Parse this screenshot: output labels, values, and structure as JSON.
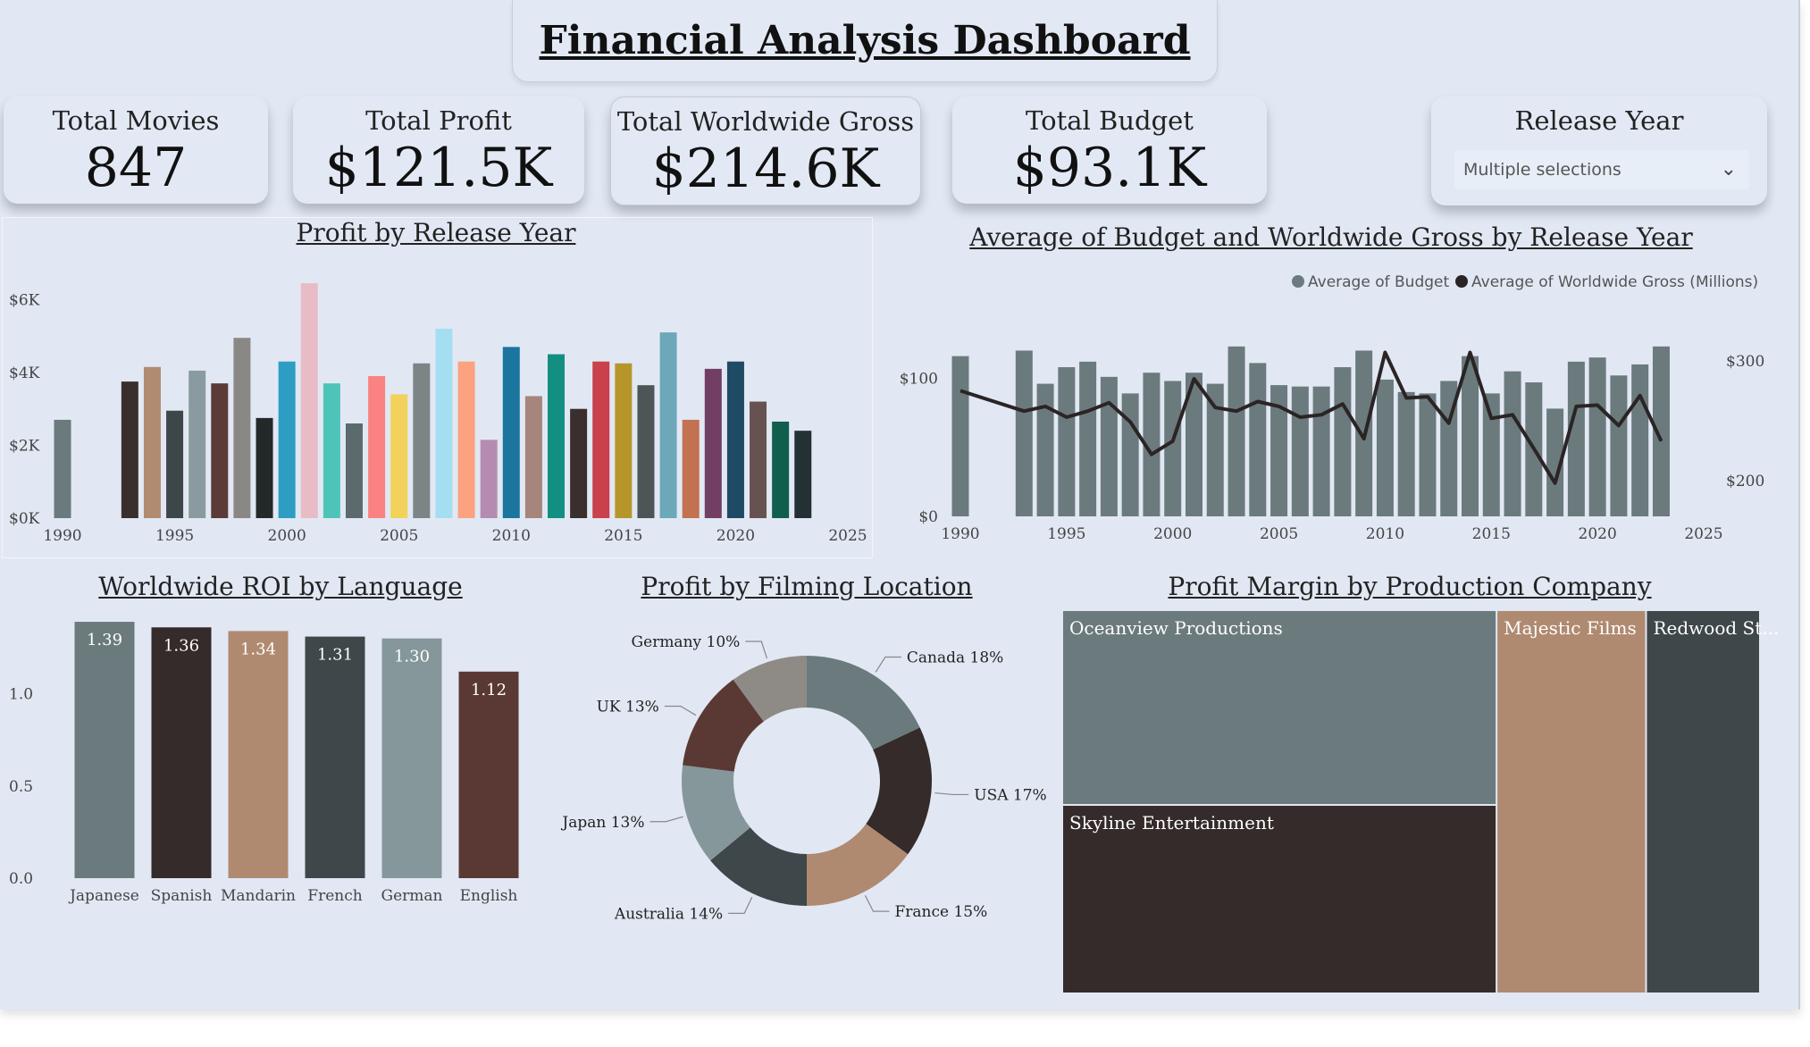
{
  "dashboard": {
    "title": "Financial Analysis Dashboard"
  },
  "kpis": {
    "movies": {
      "label": "Total Movies",
      "value": "847"
    },
    "profit": {
      "label": "Total Profit",
      "value": "$121.5K"
    },
    "gross": {
      "label": "Total Worldwide Gross",
      "value": "$214.6K"
    },
    "budget": {
      "label": "Total Budget",
      "value": "$93.1K"
    }
  },
  "slicer": {
    "label": "Release Year",
    "value": "Multiple selections",
    "icon": "chevron-down-icon"
  },
  "charts": {
    "profit_by_year": {
      "title": "Profit by Release Year"
    },
    "budget_gross": {
      "title": "Average of Budget and Worldwide Gross by Release Year"
    },
    "roi": {
      "title": "Worldwide ROI by Language"
    },
    "location": {
      "title": "Profit by Filming Location"
    },
    "margin": {
      "title": "Profit Margin by Production Company"
    }
  },
  "chart_data": [
    {
      "type": "bar",
      "title": "Profit by Release Year",
      "x": [
        1990,
        1993,
        1994,
        1995,
        1996,
        1997,
        1998,
        1999,
        2000,
        2001,
        2002,
        2003,
        2004,
        2005,
        2006,
        2007,
        2008,
        2009,
        2010,
        2011,
        2012,
        2013,
        2014,
        2015,
        2016,
        2017,
        2018,
        2019,
        2020,
        2021,
        2022,
        2023
      ],
      "values": [
        2700,
        3750,
        4150,
        2950,
        4050,
        3700,
        4950,
        2750,
        4300,
        6450,
        3700,
        2600,
        3900,
        3400,
        4250,
        5200,
        4300,
        2150,
        4700,
        3350,
        4500,
        3000,
        4300,
        4250,
        3650,
        5100,
        2700,
        4100,
        4300,
        3200,
        2650,
        2400
      ],
      "colors": [
        "#6b7a7d",
        "#3a2f2c",
        "#b18b71",
        "#3d4649",
        "#8a9b9f",
        "#5a3b36",
        "#8a8885",
        "#232929",
        "#2e9dc3",
        "#e7bcc5",
        "#4ec4b9",
        "#5b6a6d",
        "#fb8282",
        "#f2d25a",
        "#7d8486",
        "#a5def0",
        "#fca27e",
        "#b48cb1",
        "#1b759e",
        "#a6857c",
        "#138f82",
        "#3a2f2c",
        "#c9414a",
        "#b6962a",
        "#4d5556",
        "#6da7ba",
        "#c27151",
        "#723e64",
        "#1f4a63",
        "#665351",
        "#0f5e4e",
        "#243033"
      ],
      "xlim": [
        1990,
        2025
      ],
      "xticks": [
        1990,
        1995,
        2000,
        2005,
        2010,
        2015,
        2020,
        2025
      ],
      "ylim": [
        0,
        6500
      ],
      "yticks": [
        "$0K",
        "$2K",
        "$4K",
        "$6K"
      ],
      "ytick_values": [
        0,
        2000,
        4000,
        6000
      ]
    },
    {
      "type": "bar+line",
      "title": "Average of Budget and Worldwide Gross by Release Year",
      "legend": [
        "Average of Budget",
        "Average of Worldwide Gross (Millions)"
      ],
      "legend_position": "top-right",
      "colors": {
        "bars": "#6b7a7d",
        "line": "#2b2424"
      },
      "x": [
        1990,
        1993,
        1994,
        1995,
        1996,
        1997,
        1998,
        1999,
        2000,
        2001,
        2002,
        2003,
        2004,
        2005,
        2006,
        2007,
        2008,
        2009,
        2010,
        2011,
        2012,
        2013,
        2014,
        2015,
        2016,
        2017,
        2018,
        2019,
        2020,
        2021,
        2022,
        2023
      ],
      "budget": [
        116,
        120,
        96,
        108,
        112,
        101,
        89,
        104,
        98,
        104,
        96,
        123,
        111,
        95,
        94,
        94,
        108,
        120,
        99,
        90,
        89,
        98,
        116,
        89,
        105,
        97,
        78,
        112,
        115,
        102,
        110,
        123
      ],
      "gross": [
        275,
        258,
        262,
        253,
        258,
        265,
        249,
        222,
        233,
        285,
        261,
        258,
        266,
        262,
        253,
        255,
        264,
        235,
        307,
        269,
        270,
        248,
        307,
        252,
        255,
        227,
        198,
        262,
        263,
        246,
        271,
        233
      ],
      "xlim": [
        1990,
        2025
      ],
      "xticks": [
        1990,
        1995,
        2000,
        2005,
        2010,
        2015,
        2020,
        2025
      ],
      "y_left": {
        "range": [
          0,
          130
        ],
        "ticks": [
          "$0",
          "$100"
        ],
        "tick_values": [
          0,
          100
        ]
      },
      "y_right": {
        "range": [
          142,
          320
        ],
        "ticks": [
          "$200",
          "$300"
        ],
        "tick_values": [
          200,
          300
        ]
      }
    },
    {
      "type": "bar",
      "title": "Worldwide ROI by Language",
      "categories": [
        "Japanese",
        "Spanish",
        "Mandarin",
        "French",
        "German",
        "English"
      ],
      "values": [
        1.39,
        1.36,
        1.34,
        1.31,
        1.3,
        1.12
      ],
      "labels": [
        "1.39",
        "1.36",
        "1.34",
        "1.31",
        "1.30",
        "1.12"
      ],
      "colors": [
        "#6b7a7d",
        "#342b2a",
        "#b08a70",
        "#3e4749",
        "#86979b",
        "#5a3934"
      ],
      "ylim": [
        0,
        1.4
      ],
      "yticks": [
        "0.0",
        "0.5",
        "1.0"
      ],
      "ytick_values": [
        0,
        0.5,
        1.0
      ]
    },
    {
      "type": "pie",
      "title": "Profit by Filming Location",
      "categories": [
        "Canada",
        "USA",
        "France",
        "Australia",
        "Japan",
        "UK",
        "Germany"
      ],
      "values": [
        18,
        17,
        15,
        14,
        13,
        13,
        10
      ],
      "labels": [
        "Canada 18%",
        "USA 17%",
        "France 15%",
        "Australia 14%",
        "Japan 13%",
        "UK 13%",
        "Germany 10%"
      ],
      "colors": [
        "#6b7a7d",
        "#342b2a",
        "#b08a70",
        "#3e4749",
        "#86979b",
        "#5a3934",
        "#8e8b87"
      ]
    },
    {
      "type": "treemap",
      "title": "Profit Margin by Production Company",
      "categories": [
        "Oceanview Productions",
        "Skyline Entertainment",
        "Majestic Films",
        "Redwood St..."
      ],
      "values": [
        31,
        30,
        21,
        16
      ],
      "colors": [
        "#6b7a7d",
        "#342b2a",
        "#b08a70",
        "#3e4749"
      ]
    }
  ]
}
